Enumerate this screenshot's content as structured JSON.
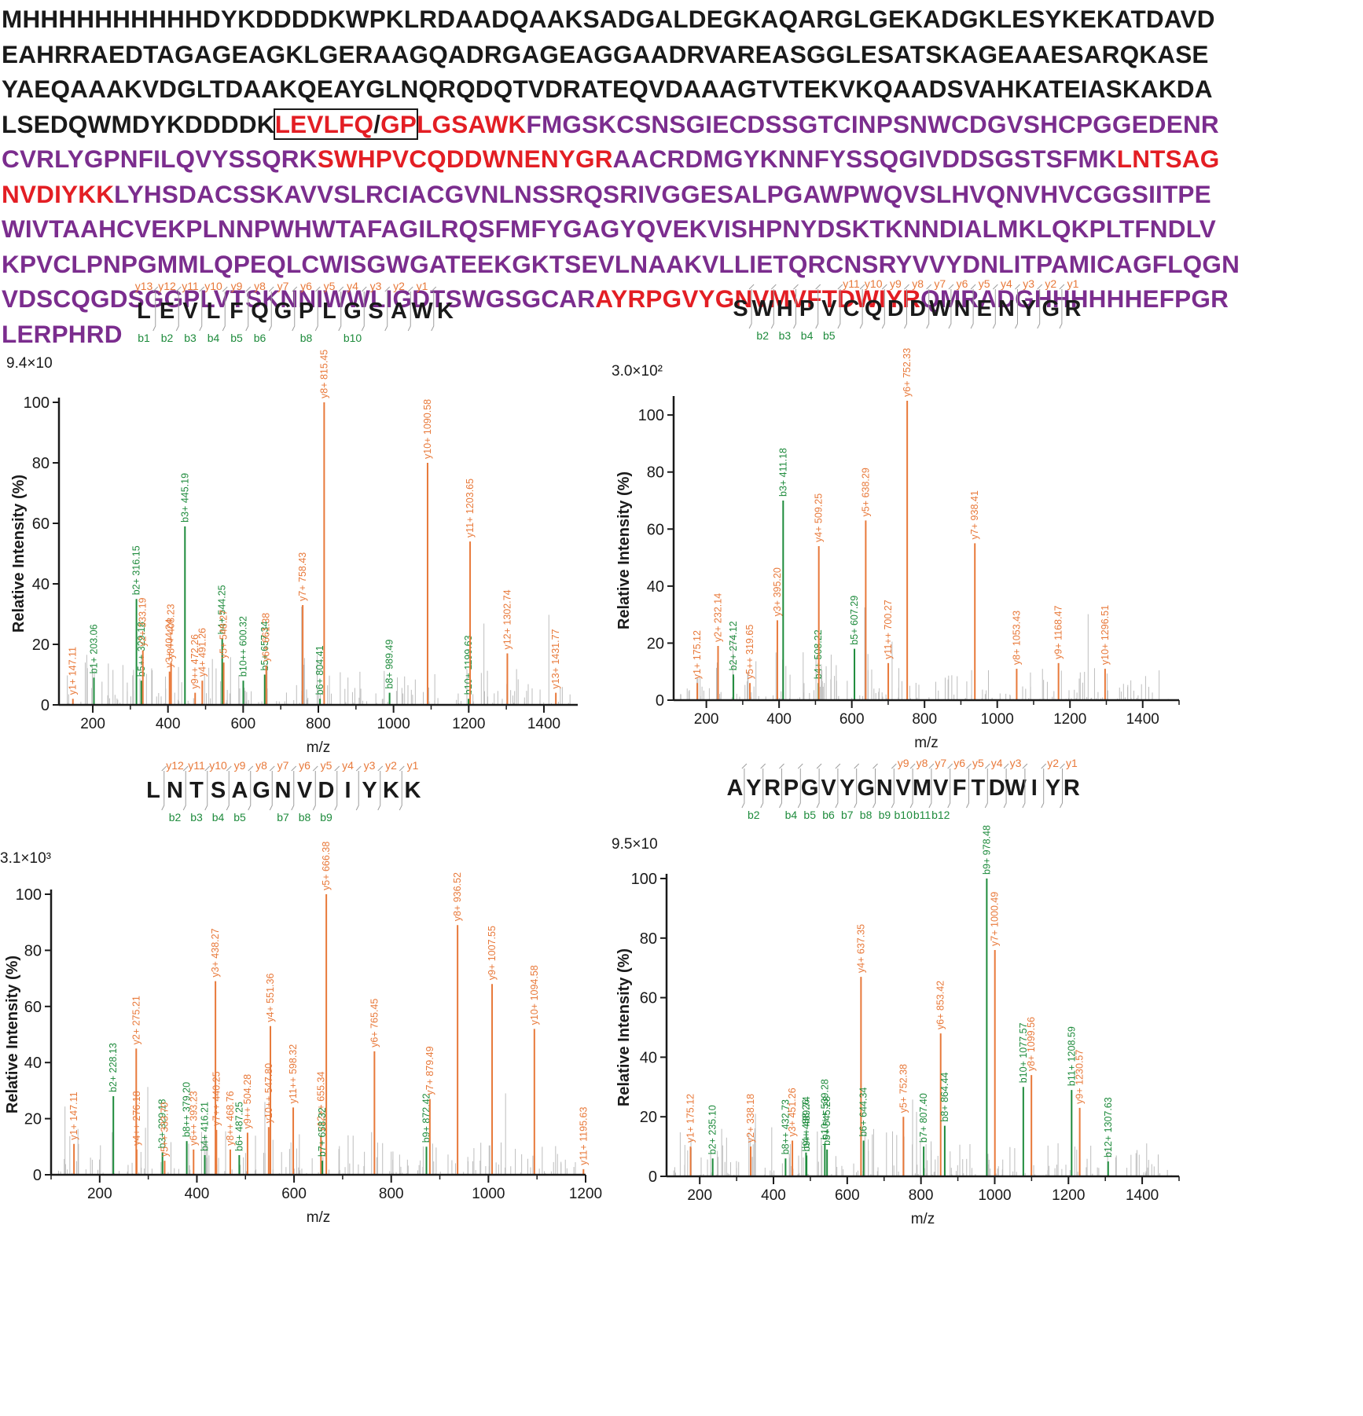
{
  "sequence": {
    "lines": [
      [
        {
          "t": "MHHHHHHHHHHDYKDDDDKWPKLRDAADQAAKSADGALDEGKAQARGLGEKADGKLESYKEKATDAVD",
          "c": "black"
        }
      ],
      [
        {
          "t": "EAHRRAEDTAGAGEAGKLGERAAGQADRGAGEAGGAADRVAREASGGLESATSKAGEAAESARQKASE",
          "c": "black"
        }
      ],
      [
        {
          "t": "YAEQAAAKVDGLTDAAKQEAYGLNQRQDQTVDRATEQVDAAAGTVTEKVKQAADSVAHKATEIASKAKDA",
          "c": "black"
        }
      ],
      [
        {
          "t": "LSEDQWMDYKDDDDK",
          "c": "black"
        },
        {
          "t": "LEVLFQ",
          "c": "red",
          "box": true
        },
        {
          "t": "/",
          "c": "black",
          "box": true
        },
        {
          "t": "GP",
          "c": "red",
          "box": true
        },
        {
          "t": "LGSAWK",
          "c": "red"
        },
        {
          "t": "FMGSKCSNSGIECDSSGTCINPSNWCDGVSHCPGGEDENR",
          "c": "purple"
        }
      ],
      [
        {
          "t": "CVRLYGPNFILQVYSSQRK",
          "c": "purple"
        },
        {
          "t": "SWHPVCQDDWNENYGR",
          "c": "red"
        },
        {
          "t": "AACRDMGYKNNFYSSQGIVDDSGSTSFMK",
          "c": "purple"
        },
        {
          "t": "LNTSAG",
          "c": "red"
        }
      ],
      [
        {
          "t": "NVDIYKK",
          "c": "red"
        },
        {
          "t": "LYHSDACSSKAVVSLRCIACGVNLNSSRQSRIVGGESALPGAWPWQVSLHVQNVHVCGGSIITPE",
          "c": "purple"
        }
      ],
      [
        {
          "t": "WIVTAAHCVEKPLNNPWHWTAFAGILRQSFMFYGAGYQVEKVISHPNYDSKTKNNDIALMKLQKPLTFNDLV",
          "c": "purple"
        }
      ],
      [
        {
          "t": "KPVCLPNPGMMLQPEQLCWISGWGATEEKGKTSEVLNAAKVLLIETQRCNSRYVVYDNLITPAMICAGFLQGN",
          "c": "purple"
        }
      ],
      [
        {
          "t": "VDSCQGDSGGPLVTSKNNIWWLIGDTSWGSGCAR",
          "c": "purple"
        },
        {
          "t": "AYRPGVYGNVMVFTDWIYR",
          "c": "red"
        },
        {
          "t": "QMRADGHHHHHHEFPGR",
          "c": "purple"
        }
      ],
      [
        {
          "t": "LERPHRD",
          "c": "purple"
        }
      ]
    ]
  },
  "colors": {
    "y_ion": "#e8793a",
    "b_ion": "#1e8b3c",
    "noise": "#bdbdbd",
    "axis": "#1a1a1a",
    "seq_black": "#1a1a1a",
    "seq_red": "#e31e24",
    "seq_purple": "#7b2d8e"
  },
  "chart_data": [
    {
      "type": "bar",
      "peptide": [
        "L",
        "E",
        "V",
        "L",
        "F",
        "Q",
        "G",
        "P",
        "L",
        "G",
        "S",
        "A",
        "W",
        "K"
      ],
      "y_labels": [
        "y13",
        "y12",
        "y11",
        "y10",
        "y9",
        "y8",
        "y7",
        "y6",
        "y5",
        "y4",
        "y3",
        "y2",
        "y1"
      ],
      "b_labels": [
        "b1",
        "b2",
        "b3",
        "b4",
        "b5",
        "b6",
        "",
        "b8",
        "",
        "b10",
        "",
        "",
        ""
      ],
      "intensity_label": "9.4×10",
      "xlabel": "m/z",
      "ylabel": "Relative   Intensity (%)",
      "xlim": [
        110,
        1490
      ],
      "xticks": [
        200,
        400,
        600,
        800,
        1000,
        1200,
        1400
      ],
      "ylim": [
        0,
        100
      ],
      "yticks": [
        0,
        20,
        40,
        60,
        80,
        100
      ],
      "peaks": [
        {
          "mz": 147.11,
          "rel": 2,
          "ion": "y",
          "label": "y1+ 147.11"
        },
        {
          "mz": 203.06,
          "rel": 9,
          "ion": "b",
          "label": "b1+ 203.06"
        },
        {
          "mz": 316.15,
          "rel": 35,
          "ion": "b",
          "label": "b2+ 316.15"
        },
        {
          "mz": 329.18,
          "rel": 8,
          "ion": "b",
          "label": "b5++ 329.18"
        },
        {
          "mz": 333.19,
          "rel": 18,
          "ion": "y",
          "label": "y2+ 333.19"
        },
        {
          "mz": 404.24,
          "rel": 11,
          "ion": "y",
          "label": "y3+ 404.24"
        },
        {
          "mz": 408.23,
          "rel": 14,
          "ion": "y",
          "label": "y8++ 408.23"
        },
        {
          "mz": 445.19,
          "rel": 59,
          "ion": "b",
          "label": "b3+ 445.19"
        },
        {
          "mz": 472.26,
          "rel": 4,
          "ion": "y",
          "label": "y9++ 472.26"
        },
        {
          "mz": 491.26,
          "rel": 8,
          "ion": "y",
          "label": "y4+ 491.26"
        },
        {
          "mz": 544.25,
          "rel": 22,
          "ion": "b",
          "label": "b4+ 544.25"
        },
        {
          "mz": 548.27,
          "rel": 14,
          "ion": "y",
          "label": "y5+ 548.27"
        },
        {
          "mz": 600.32,
          "rel": 8,
          "ion": "b",
          "label": "b10++ 600.32"
        },
        {
          "mz": 657.34,
          "rel": 10,
          "ion": "b",
          "label": "b5+ 657.34"
        },
        {
          "mz": 661.38,
          "rel": 13,
          "ion": "y",
          "label": "y6+ 661.38"
        },
        {
          "mz": 758.43,
          "rel": 33,
          "ion": "y",
          "label": "y7+ 758.43"
        },
        {
          "mz": 804.41,
          "rel": 2,
          "ion": "b",
          "label": "b6+ 804.41"
        },
        {
          "mz": 815.45,
          "rel": 100,
          "ion": "y",
          "label": "y8+ 815.45"
        },
        {
          "mz": 989.49,
          "rel": 4,
          "ion": "b",
          "label": "b8+ 989.49"
        },
        {
          "mz": 1090.58,
          "rel": 80,
          "ion": "y",
          "label": "y10+ 1090.58"
        },
        {
          "mz": 1199.63,
          "rel": 2,
          "ion": "b",
          "label": "b10+ 1199.63"
        },
        {
          "mz": 1203.65,
          "rel": 54,
          "ion": "y",
          "label": "y11+ 1203.65"
        },
        {
          "mz": 1302.74,
          "rel": 17,
          "ion": "y",
          "label": "y12+ 1302.74"
        },
        {
          "mz": 1431.77,
          "rel": 4,
          "ion": "y",
          "label": "y13+ 1431.77"
        }
      ]
    },
    {
      "type": "bar",
      "peptide": [
        "S",
        "W",
        "H",
        "P",
        "V",
        "C",
        "Q",
        "D",
        "D",
        "W",
        "N",
        "E",
        "N",
        "Y",
        "G",
        "R"
      ],
      "y_labels": [
        "",
        "",
        "",
        "",
        "",
        "y11",
        "y10",
        "y9",
        "y8",
        "y7",
        "y6",
        "y5",
        "y4",
        "y3",
        "y2",
        "y1"
      ],
      "b_labels": [
        "",
        "b2",
        "b3",
        "b4",
        "b5",
        "",
        "",
        "",
        "",
        "",
        "",
        "",
        "",
        "",
        "",
        ""
      ],
      "intensity_label": "3.0×10²",
      "xlabel": "m/z",
      "ylabel": "Relative   Intensity (%)",
      "xlim": [
        110,
        1500
      ],
      "xticks": [
        200,
        400,
        600,
        800,
        1000,
        1200,
        1400
      ],
      "ylim": [
        0,
        105
      ],
      "yticks": [
        0,
        20,
        40,
        60,
        80,
        100
      ],
      "peaks": [
        {
          "mz": 175.12,
          "rel": 6,
          "ion": "y",
          "label": "y1+ 175.12"
        },
        {
          "mz": 232.14,
          "rel": 19,
          "ion": "y",
          "label": "y2+ 232.14"
        },
        {
          "mz": 274.12,
          "rel": 9,
          "ion": "b",
          "label": "b2+ 274.12"
        },
        {
          "mz": 319.65,
          "rel": 6,
          "ion": "y",
          "label": "y5++ 319.65"
        },
        {
          "mz": 395.2,
          "rel": 28,
          "ion": "y",
          "label": "y3+ 395.20"
        },
        {
          "mz": 411.18,
          "rel": 70,
          "ion": "b",
          "label": "b3+ 411.18"
        },
        {
          "mz": 508.22,
          "rel": 6,
          "ion": "b",
          "label": "b4+ 508.22"
        },
        {
          "mz": 509.25,
          "rel": 54,
          "ion": "y",
          "label": "y4+ 509.25"
        },
        {
          "mz": 607.29,
          "rel": 18,
          "ion": "b",
          "label": "b5+ 607.29"
        },
        {
          "mz": 638.29,
          "rel": 63,
          "ion": "y",
          "label": "y5+ 638.29"
        },
        {
          "mz": 700.27,
          "rel": 13,
          "ion": "y",
          "label": "y11++ 700.27"
        },
        {
          "mz": 752.33,
          "rel": 105,
          "ion": "y",
          "label": "y6+ 752.33"
        },
        {
          "mz": 938.41,
          "rel": 55,
          "ion": "y",
          "label": "y7+ 938.41"
        },
        {
          "mz": 1053.43,
          "rel": 11,
          "ion": "y",
          "label": "y8+ 1053.43"
        },
        {
          "mz": 1168.47,
          "rel": 13,
          "ion": "y",
          "label": "y9+ 1168.47"
        },
        {
          "mz": 1296.51,
          "rel": 11,
          "ion": "y",
          "label": "y10+ 1296.51"
        }
      ]
    },
    {
      "type": "bar",
      "peptide": [
        "L",
        "N",
        "T",
        "S",
        "A",
        "G",
        "N",
        "V",
        "D",
        "I",
        "Y",
        "K",
        "K"
      ],
      "y_labels": [
        "",
        "y12",
        "y11",
        "y10",
        "y9",
        "y8",
        "y7",
        "y6",
        "y5",
        "y4",
        "y3",
        "y2",
        "y1"
      ],
      "b_labels": [
        "",
        "b2",
        "b3",
        "b4",
        "b5",
        "",
        "b7",
        "b8",
        "b9",
        "",
        "",
        "",
        ""
      ],
      "intensity_label": "3.1×10³",
      "xlabel": "m/z",
      "ylabel": "Relative   Intensity (%)",
      "xlim": [
        100,
        1200
      ],
      "xticks": [
        200,
        400,
        600,
        800,
        1000,
        1200
      ],
      "ylim": [
        0,
        100
      ],
      "yticks": [
        0,
        20,
        40,
        60,
        80,
        100
      ],
      "peaks": [
        {
          "mz": 147.11,
          "rel": 11,
          "ion": "y",
          "label": "y1+ 147.11"
        },
        {
          "mz": 228.13,
          "rel": 28,
          "ion": "b",
          "label": "b2+ 228.13"
        },
        {
          "mz": 275.21,
          "rel": 45,
          "ion": "y",
          "label": "y2+ 275.21"
        },
        {
          "mz": 276.18,
          "rel": 9,
          "ion": "y",
          "label": "y4++ 276.18"
        },
        {
          "mz": 329.18,
          "rel": 8,
          "ion": "b",
          "label": "b3+ 329.18"
        },
        {
          "mz": 333.7,
          "rel": 5,
          "ion": "y",
          "label": "y5++ 333.70"
        },
        {
          "mz": 379.2,
          "rel": 12,
          "ion": "b",
          "label": "b8++ 379.20"
        },
        {
          "mz": 393.23,
          "rel": 9,
          "ion": "y",
          "label": "y6++ 393.23"
        },
        {
          "mz": 416.21,
          "rel": 7,
          "ion": "b",
          "label": "b4+ 416.21"
        },
        {
          "mz": 438.27,
          "rel": 69,
          "ion": "y",
          "label": "y3+ 438.27"
        },
        {
          "mz": 440.25,
          "rel": 16,
          "ion": "y",
          "label": "y7++ 440.25"
        },
        {
          "mz": 468.76,
          "rel": 9,
          "ion": "y",
          "label": "y8++ 468.76"
        },
        {
          "mz": 487.25,
          "rel": 7,
          "ion": "b",
          "label": "b6+ 487.25"
        },
        {
          "mz": 504.28,
          "rel": 15,
          "ion": "y",
          "label": "y9++ 504.28"
        },
        {
          "mz": 547.8,
          "rel": 17,
          "ion": "y",
          "label": "y10++ 547.80"
        },
        {
          "mz": 551.36,
          "rel": 53,
          "ion": "y",
          "label": "y4+ 551.36"
        },
        {
          "mz": 598.32,
          "rel": 24,
          "ion": "y",
          "label": "y11++ 598.32"
        },
        {
          "mz": 655.34,
          "rel": 14,
          "ion": "y",
          "label": "y12++ 655.34"
        },
        {
          "mz": 658.32,
          "rel": 5,
          "ion": "b",
          "label": "b7+ 658.32"
        },
        {
          "mz": 666.38,
          "rel": 100,
          "ion": "y",
          "label": "y5+ 666.38"
        },
        {
          "mz": 765.45,
          "rel": 44,
          "ion": "y",
          "label": "y6+ 765.45"
        },
        {
          "mz": 872.42,
          "rel": 10,
          "ion": "b",
          "label": "b9+ 872.42"
        },
        {
          "mz": 879.49,
          "rel": 27,
          "ion": "y",
          "label": "y7+ 879.49"
        },
        {
          "mz": 936.52,
          "rel": 89,
          "ion": "y",
          "label": "y8+ 936.52"
        },
        {
          "mz": 1007.55,
          "rel": 68,
          "ion": "y",
          "label": "y9+ 1007.55"
        },
        {
          "mz": 1094.58,
          "rel": 52,
          "ion": "y",
          "label": "y10+ 1094.58"
        },
        {
          "mz": 1195.63,
          "rel": 2,
          "ion": "y",
          "label": "y11+ 1195.63"
        }
      ]
    },
    {
      "type": "bar",
      "peptide": [
        "A",
        "Y",
        "R",
        "P",
        "G",
        "V",
        "Y",
        "G",
        "N",
        "V",
        "M",
        "V",
        "F",
        "T",
        "D",
        "W",
        "I",
        "Y",
        "R"
      ],
      "y_labels": [
        "",
        "",
        "",
        "",
        "",
        "",
        "",
        "",
        "",
        "y9",
        "y8",
        "y7",
        "y6",
        "y5",
        "y4",
        "y3",
        "",
        "y2",
        "y1"
      ],
      "b_labels": [
        "",
        "b2",
        "",
        "b4",
        "b5",
        "b6",
        "b7",
        "b8",
        "b9",
        "b10",
        "b11",
        "b12",
        "",
        "",
        "",
        "",
        "",
        "",
        ""
      ],
      "intensity_label": "9.5×10",
      "xlabel": "m/z",
      "ylabel": "Relative   Intensity (%)",
      "xlim": [
        110,
        1500
      ],
      "xticks": [
        200,
        400,
        600,
        800,
        1000,
        1200,
        1400
      ],
      "ylim": [
        0,
        100
      ],
      "yticks": [
        0,
        20,
        40,
        60,
        80,
        100
      ],
      "peaks": [
        {
          "mz": 175.12,
          "rel": 10,
          "ion": "y",
          "label": "y1+ 175.12"
        },
        {
          "mz": 235.1,
          "rel": 6,
          "ion": "b",
          "label": "b2+ 235.10"
        },
        {
          "mz": 338.18,
          "rel": 10,
          "ion": "y",
          "label": "y2+ 338.18"
        },
        {
          "mz": 432.73,
          "rel": 6,
          "ion": "b",
          "label": "b8++ 432.73"
        },
        {
          "mz": 451.26,
          "rel": 12,
          "ion": "y",
          "label": "y3+ 451.26"
        },
        {
          "mz": 488.26,
          "rel": 8,
          "ion": "b",
          "label": "b4+ 488.26"
        },
        {
          "mz": 489.74,
          "rel": 7,
          "ion": "b",
          "label": "b9++ 489.74"
        },
        {
          "mz": 539.28,
          "rel": 11,
          "ion": "b",
          "label": "b10++ 539.28"
        },
        {
          "mz": 545.28,
          "rel": 9,
          "ion": "b",
          "label": "b5+ 545.28"
        },
        {
          "mz": 637.35,
          "rel": 67,
          "ion": "y",
          "label": "y4+ 637.35"
        },
        {
          "mz": 644.34,
          "rel": 12,
          "ion": "b",
          "label": "b6+ 644.34"
        },
        {
          "mz": 752.38,
          "rel": 20,
          "ion": "y",
          "label": "y5+ 752.38"
        },
        {
          "mz": 807.4,
          "rel": 10,
          "ion": "b",
          "label": "b7+ 807.40"
        },
        {
          "mz": 853.42,
          "rel": 48,
          "ion": "y",
          "label": "y6+ 853.42"
        },
        {
          "mz": 864.44,
          "rel": 17,
          "ion": "b",
          "label": "b8+ 864.44"
        },
        {
          "mz": 978.48,
          "rel": 100,
          "ion": "b",
          "label": "b9+ 978.48"
        },
        {
          "mz": 1000.49,
          "rel": 76,
          "ion": "y",
          "label": "y7+ 1000.49"
        },
        {
          "mz": 1077.57,
          "rel": 30,
          "ion": "b",
          "label": "b10+ 1077.57"
        },
        {
          "mz": 1099.56,
          "rel": 34,
          "ion": "y",
          "label": "y8+ 1099.56"
        },
        {
          "mz": 1208.59,
          "rel": 29,
          "ion": "b",
          "label": "b11+ 1208.59"
        },
        {
          "mz": 1230.57,
          "rel": 23,
          "ion": "y",
          "label": "y9+ 1230.57"
        },
        {
          "mz": 1307.63,
          "rel": 5,
          "ion": "b",
          "label": "b12+ 1307.63"
        }
      ]
    }
  ]
}
